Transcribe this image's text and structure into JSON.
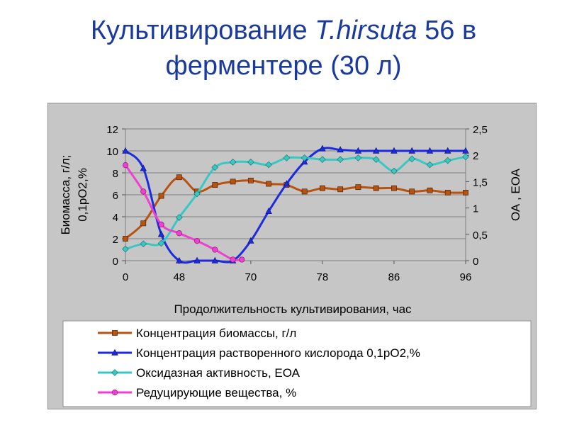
{
  "slide": {
    "title_prefix": "Культивирование ",
    "title_italic": "T.hirsuta",
    "title_rest": " 56 в",
    "title_line2": "ферментере (30 л)"
  },
  "colors": {
    "biomass": "#b8520f",
    "oxygen": "#1c2be0",
    "oxidase": "#37c8c4",
    "reducing": "#ee3fd0",
    "title": "#1a3a9e",
    "panel": "#c6c6c6"
  },
  "chart_data": {
    "type": "line",
    "xlabel": "Продолжительность культивирования, час",
    "ylabel_left": "Биомасса, г/л; 0,1рО2,%",
    "ylabel_right": "ОА , ЕОА",
    "ylim_left": [
      0,
      12
    ],
    "ylim_right": [
      0,
      2.5
    ],
    "yticks_left": [
      "0",
      "2",
      "4",
      "6",
      "8",
      "10",
      "12"
    ],
    "yticks_right": [
      "0",
      "0,5",
      "1",
      "1,5",
      "2",
      "2,5"
    ],
    "x_tick_labels": [
      "0",
      "48",
      "70",
      "78",
      "86",
      "96"
    ],
    "x_tick_positions": [
      0,
      6,
      14,
      22,
      30,
      38
    ],
    "x_range": [
      0,
      38
    ],
    "grid": "horizontal",
    "legend_position": "bottom",
    "series": [
      {
        "name": "Концентрация биомассы, г/л",
        "axis": "left",
        "marker": "square",
        "x": [
          0,
          2,
          4,
          6,
          8,
          10,
          12,
          14,
          16,
          18,
          20,
          22,
          24,
          26,
          28,
          30,
          32,
          34,
          36,
          38
        ],
        "y": [
          2.0,
          3.4,
          5.9,
          7.6,
          6.3,
          6.9,
          7.2,
          7.3,
          7.0,
          6.9,
          6.3,
          6.6,
          6.5,
          6.7,
          6.6,
          6.6,
          6.3,
          6.4,
          6.2,
          6.2
        ]
      },
      {
        "name": "Концентрация растворенного кислорода 0,1рО2,%",
        "axis": "left",
        "marker": "triangle",
        "x": [
          0,
          2,
          4,
          6,
          8,
          10,
          12,
          14,
          16,
          18,
          20,
          22,
          24,
          26,
          28,
          30,
          32,
          34,
          36,
          38
        ],
        "y": [
          10.0,
          8.4,
          2.4,
          0.0,
          0.0,
          0.0,
          0.0,
          1.8,
          4.5,
          7.0,
          9.0,
          10.2,
          10.1,
          10.0,
          10.0,
          10.0,
          10.0,
          10.0,
          10.0,
          10.0
        ]
      },
      {
        "name": "Оксидазная активность,  ЕОА",
        "axis": "right",
        "marker": "diamond",
        "x": [
          0,
          2,
          4,
          6,
          8,
          10,
          12,
          14,
          16,
          18,
          20,
          22,
          24,
          26,
          28,
          30,
          32,
          34,
          36,
          38
        ],
        "y": [
          0.22,
          0.32,
          0.33,
          0.82,
          1.27,
          1.77,
          1.87,
          1.87,
          1.82,
          1.95,
          1.95,
          1.92,
          1.92,
          1.95,
          1.92,
          1.7,
          1.93,
          1.82,
          1.9,
          1.97
        ]
      },
      {
        "name": "Редуцирующие вещества, %",
        "axis": "left",
        "marker": "circle",
        "x": [
          0,
          2,
          4,
          6,
          8,
          10,
          12,
          13
        ],
        "y": [
          8.7,
          6.3,
          3.3,
          2.5,
          1.8,
          1.0,
          0.1,
          0.1
        ]
      }
    ]
  }
}
